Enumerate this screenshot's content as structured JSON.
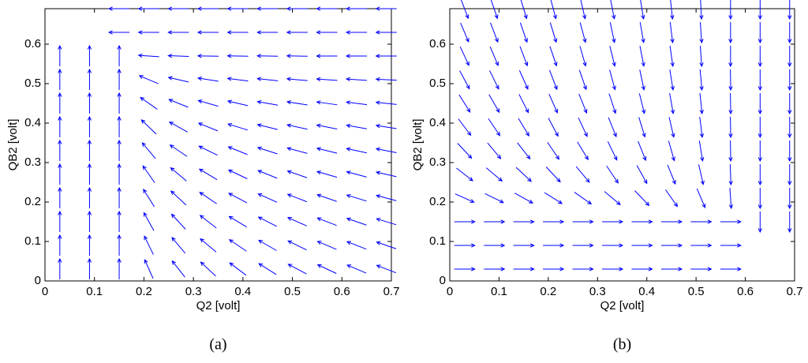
{
  "chart_data": [
    {
      "type": "quiver",
      "caption": "(a)",
      "xlabel": "Q2 [volt]",
      "ylabel": "QB2 [volt]",
      "color": "#0000ff",
      "xlim": [
        0,
        0.7
      ],
      "ylim": [
        0,
        0.69
      ],
      "xticks": [
        0,
        0.1,
        0.2,
        0.3,
        0.4,
        0.5,
        0.6,
        0.7
      ],
      "yticks": [
        0,
        0.1,
        0.2,
        0.3,
        0.4,
        0.5,
        0.6
      ],
      "x": [
        0.03,
        0.09,
        0.15,
        0.21,
        0.27,
        0.33,
        0.39,
        0.45,
        0.51,
        0.57,
        0.63,
        0.69
      ],
      "y": [
        0.03,
        0.09,
        0.15,
        0.21,
        0.27,
        0.33,
        0.39,
        0.45,
        0.51,
        0.57,
        0.63,
        0.69
      ],
      "angles": [
        [
          90,
          90,
          90,
          114,
          128,
          137,
          143,
          148,
          152,
          155,
          157,
          159
        ],
        [
          90,
          90,
          90,
          116,
          130,
          140,
          146,
          150,
          154,
          157,
          159,
          161
        ],
        [
          90,
          90,
          90,
          119,
          133,
          142,
          149,
          153,
          156,
          159,
          161,
          163
        ],
        [
          90,
          90,
          90,
          122,
          137,
          146,
          152,
          156,
          159,
          161,
          163,
          165
        ],
        [
          90,
          90,
          90,
          125,
          140,
          149,
          155,
          158,
          161,
          164,
          165,
          167
        ],
        [
          90,
          90,
          90,
          130,
          146,
          154,
          158,
          162,
          165,
          166,
          168,
          169
        ],
        [
          90,
          90,
          90,
          136,
          151,
          158,
          163,
          166,
          168,
          169,
          170,
          171
        ],
        [
          90,
          90,
          90,
          145,
          158,
          164,
          167,
          170,
          171,
          172,
          173,
          174
        ],
        [
          90,
          90,
          90,
          157,
          167,
          171,
          173,
          174,
          175,
          176,
          176,
          177
        ],
        [
          90,
          90,
          90,
          176,
          178,
          179,
          179,
          179,
          179,
          180,
          180,
          180
        ],
        [
          null,
          null,
          180,
          180,
          180,
          180,
          180,
          180,
          180,
          180,
          180,
          180
        ],
        [
          null,
          null,
          180,
          180,
          180,
          180,
          180,
          180,
          180,
          180,
          180,
          180
        ]
      ]
    },
    {
      "type": "quiver",
      "caption": "(b)",
      "xlabel": "Q2 [volt]",
      "ylabel": "QB2 [volt]",
      "color": "#0000ff",
      "xlim": [
        0,
        0.7
      ],
      "ylim": [
        0,
        0.69
      ],
      "xticks": [
        0,
        0.1,
        0.2,
        0.3,
        0.4,
        0.5,
        0.6,
        0.7
      ],
      "yticks": [
        0,
        0.1,
        0.2,
        0.3,
        0.4,
        0.5,
        0.6
      ],
      "x": [
        0.03,
        0.09,
        0.15,
        0.21,
        0.27,
        0.33,
        0.39,
        0.45,
        0.51,
        0.57,
        0.63,
        0.69
      ],
      "y": [
        0.03,
        0.09,
        0.15,
        0.21,
        0.27,
        0.33,
        0.39,
        0.45,
        0.51,
        0.57,
        0.63,
        0.69
      ],
      "angles": [
        [
          0,
          0,
          0,
          0,
          0,
          0,
          0,
          0,
          0,
          0,
          null,
          null
        ],
        [
          0,
          0,
          0,
          0,
          0,
          0,
          0,
          0,
          0,
          0,
          null,
          null
        ],
        [
          0,
          0,
          0,
          0,
          0,
          0,
          0,
          0,
          0,
          0,
          -90,
          -90
        ],
        [
          -24,
          -26,
          -29,
          -32,
          -35,
          -40,
          -46,
          -55,
          -67,
          -86,
          -90,
          -90
        ],
        [
          -38,
          -40,
          -43,
          -47,
          -50,
          -56,
          -61,
          -68,
          -77,
          -88,
          -90,
          -90
        ],
        [
          -47,
          -50,
          -52,
          -56,
          -59,
          -64,
          -68,
          -74,
          -81,
          -89,
          -90,
          -90
        ],
        [
          -53,
          -56,
          -59,
          -62,
          -65,
          -68,
          -73,
          -77,
          -83,
          -89,
          -90,
          -90
        ],
        [
          -58,
          -60,
          -63,
          -66,
          -68,
          -72,
          -76,
          -80,
          -84,
          -89,
          -90,
          -90
        ],
        [
          -62,
          -64,
          -66,
          -69,
          -71,
          -75,
          -78,
          -81,
          -85,
          -89,
          -90,
          -90
        ],
        [
          -65,
          -67,
          -69,
          -71,
          -74,
          -76,
          -79,
          -82,
          -86,
          -90,
          -90,
          -90
        ],
        [
          -67,
          -69,
          -71,
          -73,
          -75,
          -78,
          -80,
          -83,
          -86,
          -90,
          -90,
          -90
        ],
        [
          -69,
          -71,
          -73,
          -75,
          -77,
          -79,
          -81,
          -84,
          -87,
          -90,
          -90,
          -90
        ]
      ]
    }
  ]
}
